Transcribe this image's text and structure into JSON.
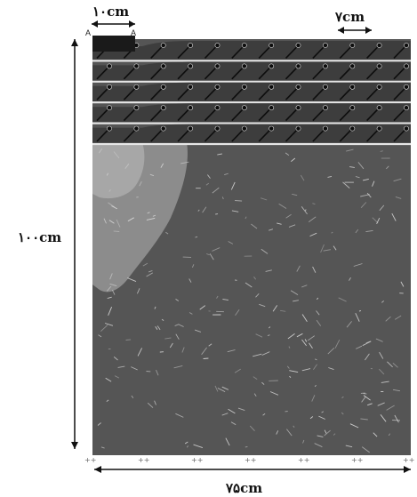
{
  "labels": {
    "footing_width": "۱۰cm",
    "nail_spacing": "۷cm",
    "model_height": "۱۰۰cm",
    "model_width": "۷۵cm",
    "corner_a_left": "A",
    "corner_a_right": "A"
  },
  "reinforcement": {
    "layer_count": 5,
    "nails_per_layer": 12
  },
  "colors": {
    "soil_main": "#555555",
    "soil_light": "#8c8c8c",
    "soil_lighter": "#a7a7a7",
    "layer_band": "#3d3d3d",
    "layer_separator": "#e6e6e6",
    "footing": "#1a1a1a",
    "nail": "#0d0d0d",
    "dimension_line": "#111111",
    "speckle": "#dedede"
  }
}
